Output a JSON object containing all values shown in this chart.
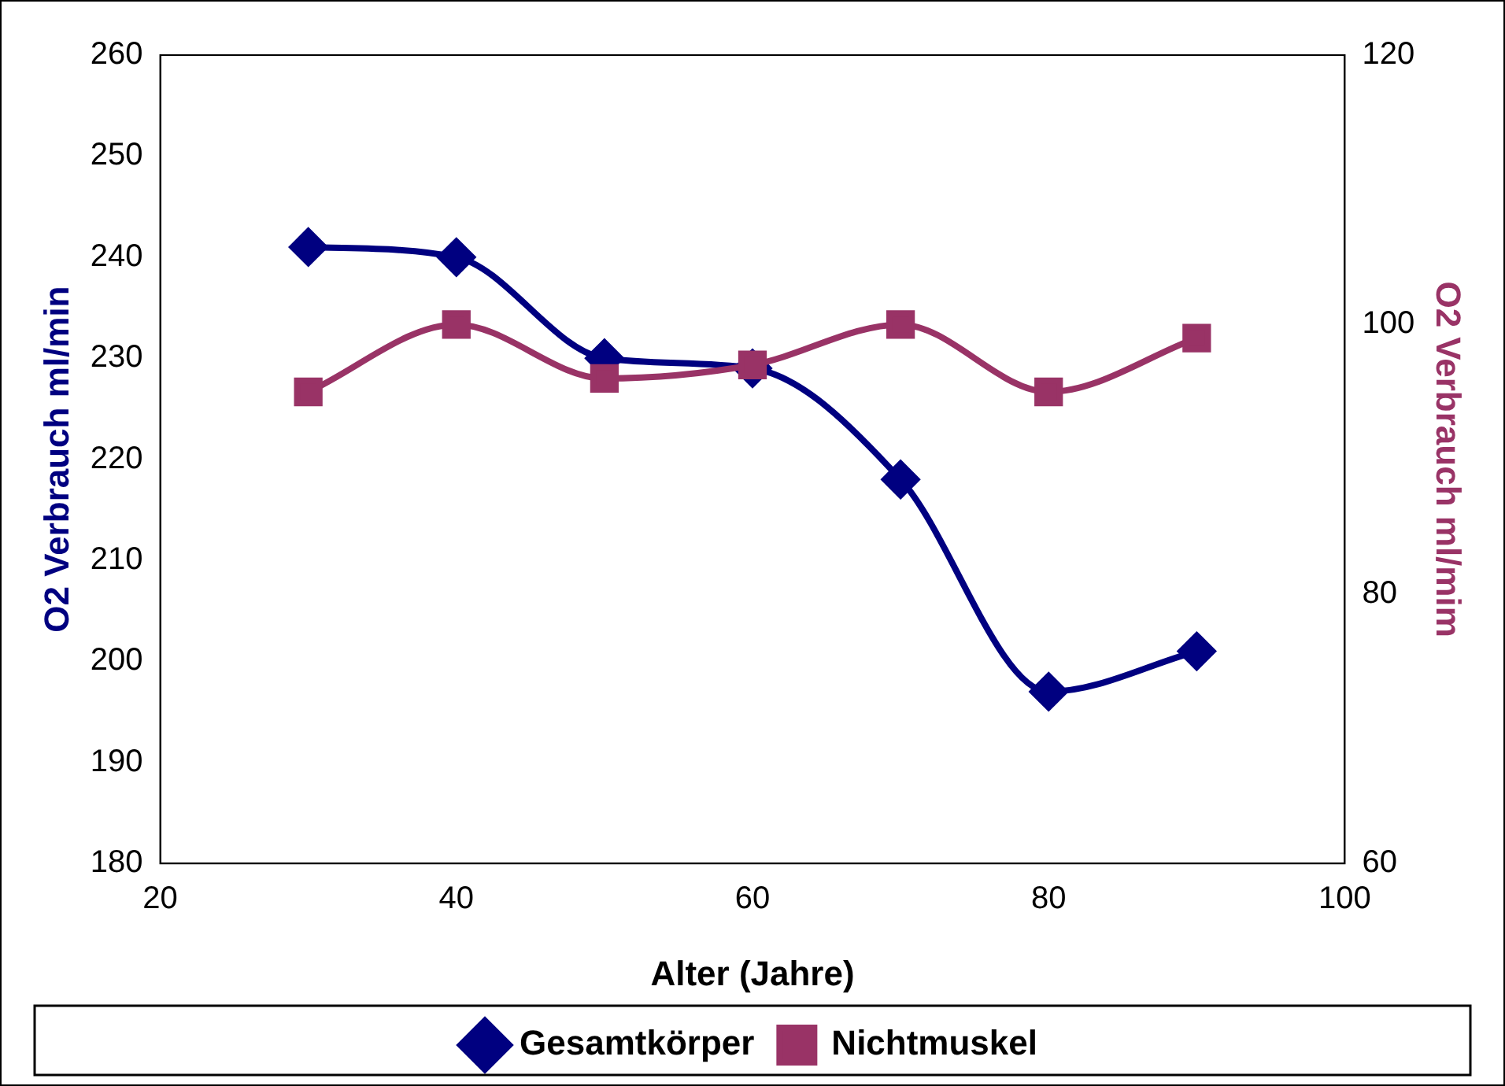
{
  "chart_data": {
    "type": "line",
    "xlabel": "Alter (Jahre)",
    "ylabel": "O2 Verbrauch ml/min",
    "y2label": "O2 Verbrauch ml/mim",
    "x": [
      30,
      40,
      50,
      60,
      70,
      80,
      90
    ],
    "series": [
      {
        "name": "Gesamtkörper",
        "color": "#000080",
        "marker": "diamond",
        "values": [
          241,
          240,
          230,
          229,
          218,
          197,
          201
        ]
      },
      {
        "name": "Nichtmuskel",
        "color": "#993366",
        "marker": "square",
        "axis": "y2",
        "values": [
          95,
          100,
          96,
          97,
          100,
          95,
          99
        ]
      }
    ],
    "xlim": [
      20,
      100
    ],
    "xticks": [
      20,
      40,
      60,
      80,
      100
    ],
    "ylim": [
      180,
      260
    ],
    "yticks": [
      180,
      190,
      200,
      210,
      220,
      230,
      240,
      250,
      260
    ],
    "y2lim": [
      60,
      120
    ],
    "y2ticks": [
      60,
      80,
      100,
      120
    ],
    "grid": false,
    "legend": "bottom"
  }
}
